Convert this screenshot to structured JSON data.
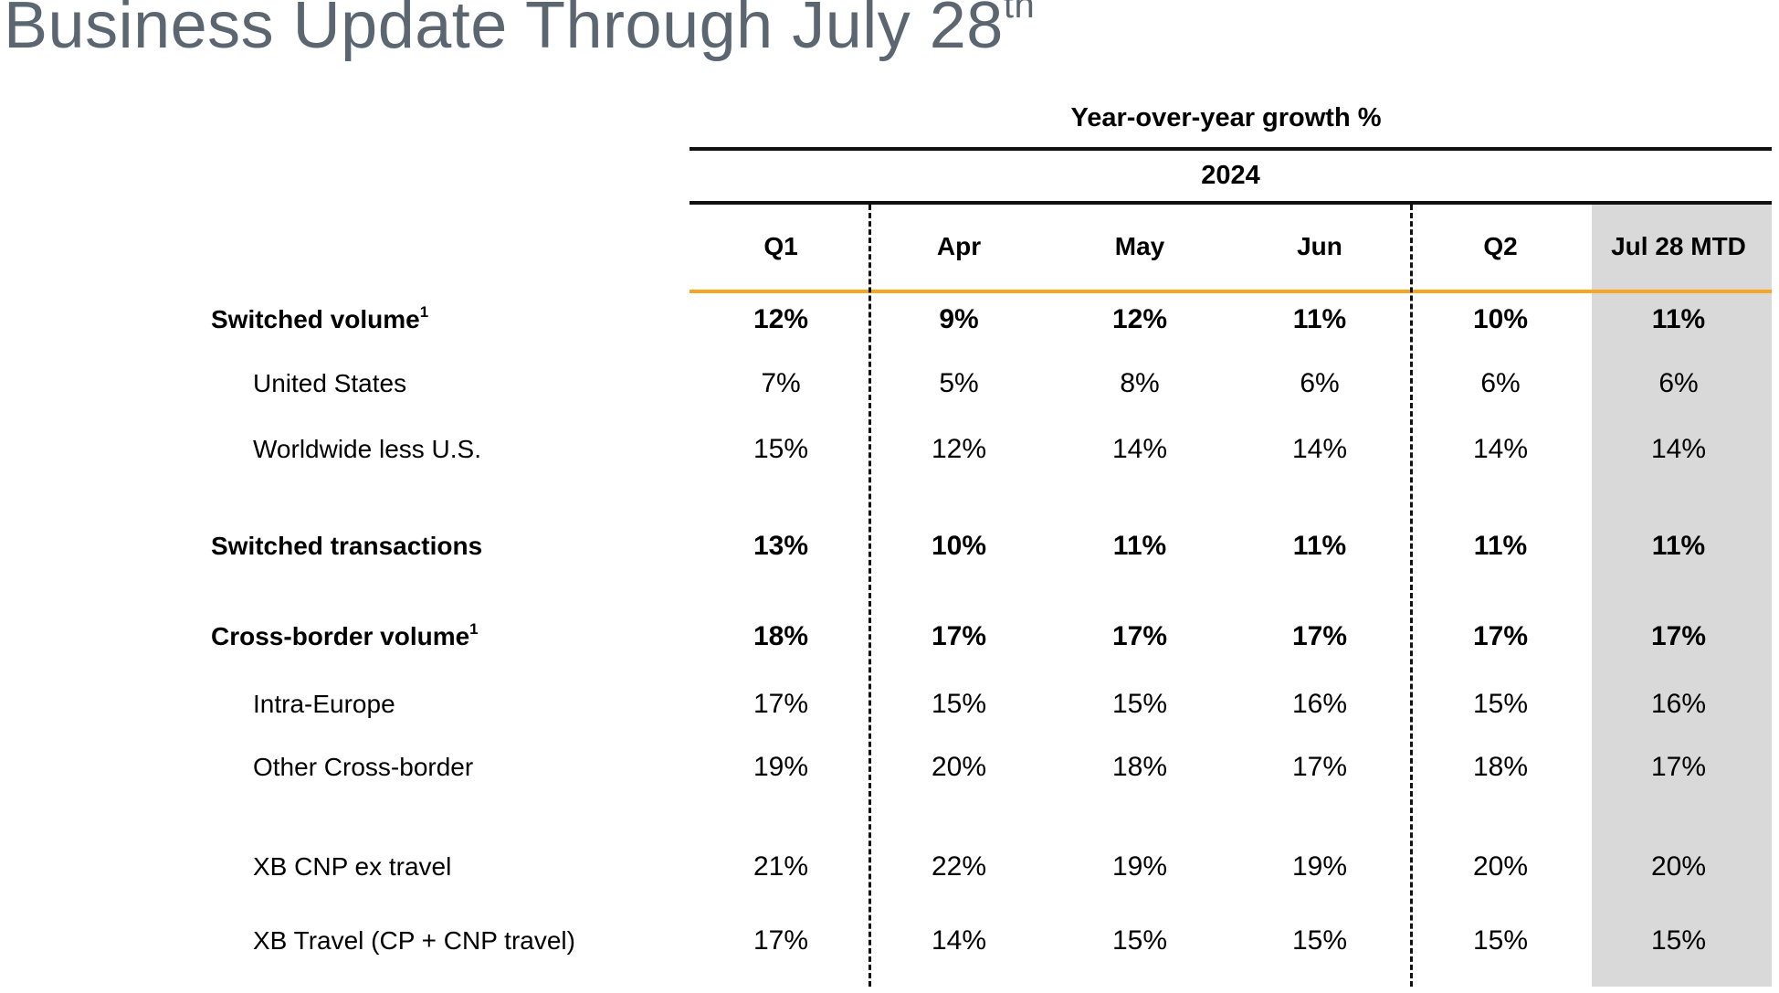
{
  "title": {
    "text": "Business Update Through July 28",
    "superscript": "th"
  },
  "table": {
    "group_header": "Year-over-year growth %",
    "year": "2024",
    "columns": [
      "Q1",
      "Apr",
      "May",
      "Jun",
      "Q2",
      "Jul 28 MTD"
    ],
    "highlight_column": "Jul 28 MTD",
    "colors": {
      "accent_rule": "#f5a623",
      "highlight_bg": "#d9d9d9",
      "title": "#5b6670"
    },
    "rows": [
      {
        "label": "Switched volume",
        "footnote": "1",
        "style": "bold",
        "values": [
          "12%",
          "9%",
          "12%",
          "11%",
          "10%",
          "11%"
        ]
      },
      {
        "label": "United States",
        "footnote": "",
        "style": "indent",
        "values": [
          "7%",
          "5%",
          "8%",
          "6%",
          "6%",
          "6%"
        ]
      },
      {
        "label": "Worldwide less U.S.",
        "footnote": "",
        "style": "indent",
        "values": [
          "15%",
          "12%",
          "14%",
          "14%",
          "14%",
          "14%"
        ]
      },
      {
        "label": "Switched transactions",
        "footnote": "",
        "style": "bold",
        "values": [
          "13%",
          "10%",
          "11%",
          "11%",
          "11%",
          "11%"
        ]
      },
      {
        "label": "Cross-border volume",
        "footnote": "1",
        "style": "bold",
        "values": [
          "18%",
          "17%",
          "17%",
          "17%",
          "17%",
          "17%"
        ]
      },
      {
        "label": "Intra-Europe",
        "footnote": "",
        "style": "indent",
        "values": [
          "17%",
          "15%",
          "15%",
          "16%",
          "15%",
          "16%"
        ]
      },
      {
        "label": "Other Cross-border",
        "footnote": "",
        "style": "indent",
        "values": [
          "19%",
          "20%",
          "18%",
          "17%",
          "18%",
          "17%"
        ]
      },
      {
        "label": "XB CNP ex travel",
        "footnote": "",
        "style": "indent",
        "values": [
          "21%",
          "22%",
          "19%",
          "19%",
          "20%",
          "20%"
        ]
      },
      {
        "label": "XB Travel (CP + CNP travel)",
        "footnote": "",
        "style": "indent",
        "values": [
          "17%",
          "14%",
          "15%",
          "15%",
          "15%",
          "15%"
        ]
      }
    ]
  }
}
